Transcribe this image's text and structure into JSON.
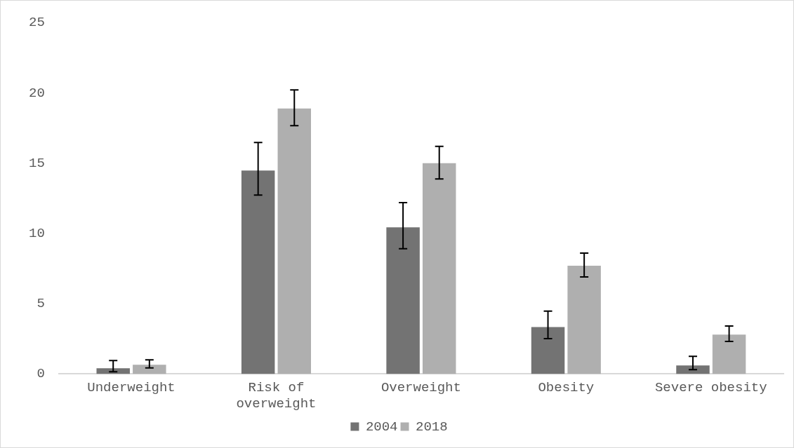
{
  "chart_data": {
    "type": "bar",
    "categories": [
      "Underweight",
      "Risk of overweight",
      "Overweight",
      "Obesity",
      "Severe obesity"
    ],
    "series": [
      {
        "name": "2004",
        "color": "#737373",
        "values": [
          0.41,
          14.48,
          10.44,
          3.34,
          0.61
        ],
        "errors": [
          [
            0.16,
            0.95
          ],
          [
            12.73,
            16.47
          ],
          [
            8.91,
            12.2
          ],
          [
            2.51,
            4.47
          ],
          [
            0.31,
            1.26
          ]
        ]
      },
      {
        "name": "2018",
        "color": "#afafaf",
        "values": [
          0.66,
          18.9,
          15.0,
          7.7,
          2.8
        ],
        "errors": [
          [
            0.43,
            1.0
          ],
          [
            17.67,
            20.22
          ],
          [
            13.88,
            16.2
          ],
          [
            6.9,
            8.6
          ],
          [
            2.32,
            3.41
          ]
        ]
      }
    ],
    "ylim": [
      0,
      25
    ],
    "yticks": [
      0,
      5,
      10,
      15,
      20,
      25
    ],
    "grid": false,
    "legend": "bottom"
  }
}
